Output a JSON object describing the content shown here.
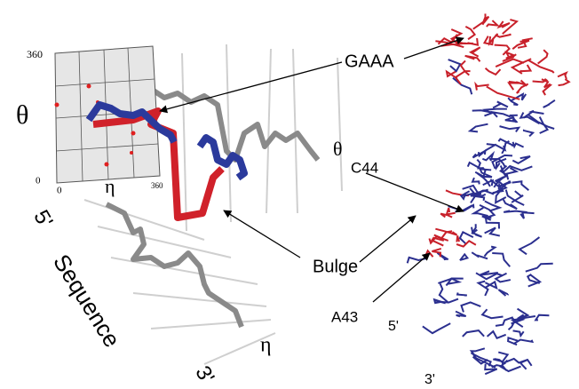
{
  "inset": {
    "y_max": "360",
    "y_min": "0",
    "x_min": "0",
    "x_max": "360",
    "y_label": "θ",
    "x_label": "η"
  },
  "plot": {
    "z_label": "θ",
    "start": "5'",
    "sequence_label": "Sequence",
    "end": "3'",
    "x_label": "η"
  },
  "structure": {
    "gaaa": "GAAA",
    "c44": "C44",
    "bulge": "Bulge",
    "a43": "A43",
    "start": "5'",
    "end": "3'"
  }
}
